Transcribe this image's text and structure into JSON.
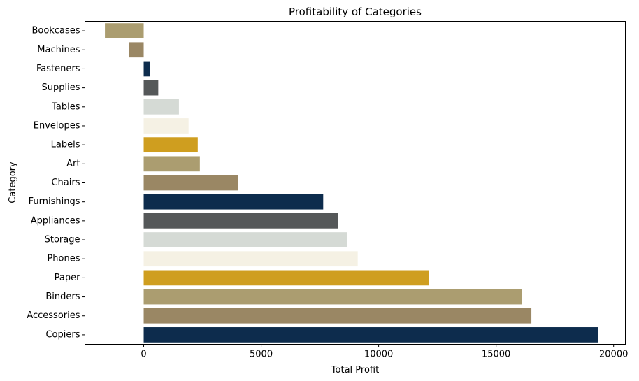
{
  "chart_data": {
    "type": "bar",
    "orientation": "horizontal",
    "title": "Profitability of Categories",
    "xlabel": "Total Profit",
    "ylabel": "Category",
    "xlim": [
      -2500,
      20500
    ],
    "xticks": [
      0,
      5000,
      10000,
      15000,
      20000
    ],
    "xtick_labels": [
      "0",
      "5000",
      "10000",
      "15000",
      "20000"
    ],
    "grid": false,
    "categories": [
      "Bookcases",
      "Machines",
      "Fasteners",
      "Supplies",
      "Tables",
      "Envelopes",
      "Labels",
      "Art",
      "Chairs",
      "Furnishings",
      "Appliances",
      "Storage",
      "Phones",
      "Paper",
      "Binders",
      "Accessories",
      "Copiers"
    ],
    "values": [
      -1650,
      -620,
      270,
      620,
      1500,
      1910,
      2300,
      2390,
      4030,
      7640,
      8260,
      8650,
      9110,
      12130,
      16100,
      16500,
      19340
    ],
    "colors": [
      "#ab9d70",
      "#9a8764",
      "#0d2c4d",
      "#555859",
      "#d5dad5",
      "#f5f1e4",
      "#cf9e1f",
      "#ab9d70",
      "#9a8764",
      "#0d2c4d",
      "#555859",
      "#d5dad5",
      "#f5f1e4",
      "#cf9e1f",
      "#ab9d70",
      "#9a8764",
      "#0d2c4d"
    ]
  }
}
